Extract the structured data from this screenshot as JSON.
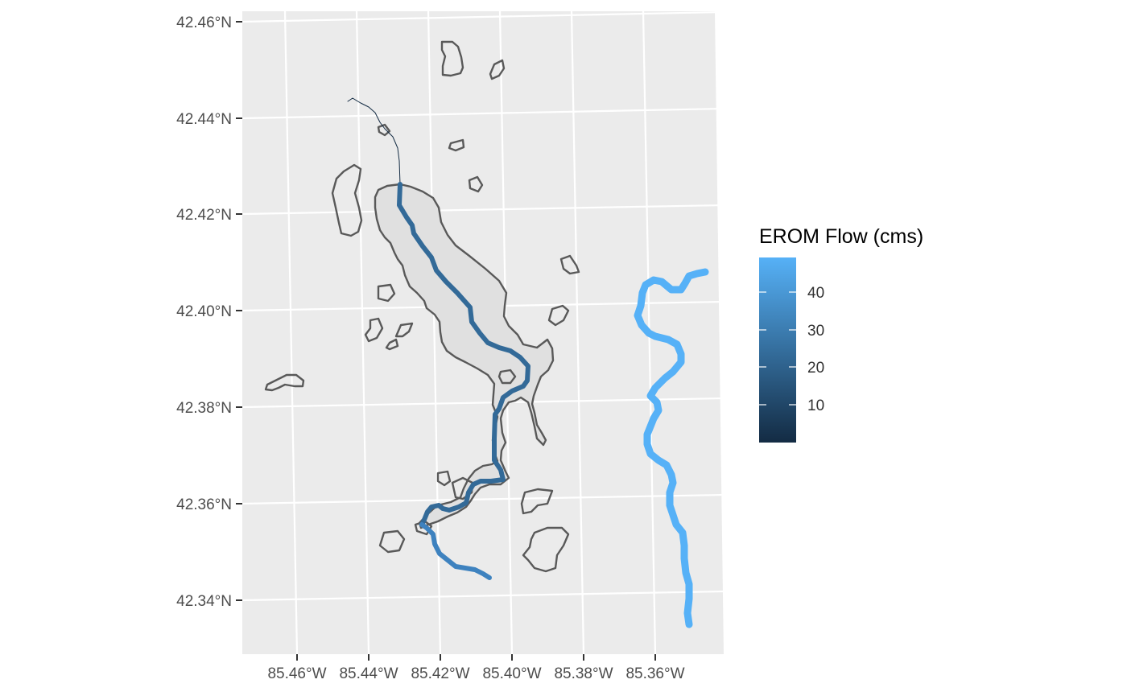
{
  "map": {
    "type": "map",
    "y_axis_labels": [
      "42.46°N",
      "42.44°N",
      "42.42°N",
      "42.40°N",
      "42.38°N",
      "42.36°N",
      "42.34°N"
    ],
    "x_axis_labels": [
      "85.46°W",
      "85.44°W",
      "85.42°W",
      "85.40°W",
      "85.38°W",
      "85.36°W"
    ],
    "panel_background": "#ebebeb",
    "gridline_color": "#ffffff",
    "outline_color": "#595959",
    "lake_fill": "#e0e0e0"
  },
  "legend": {
    "title": "EROM Flow (cms)",
    "labels": [
      "40",
      "30",
      "20",
      "10"
    ],
    "color_low": "#132b43",
    "color_high": "#56b1f7"
  }
}
